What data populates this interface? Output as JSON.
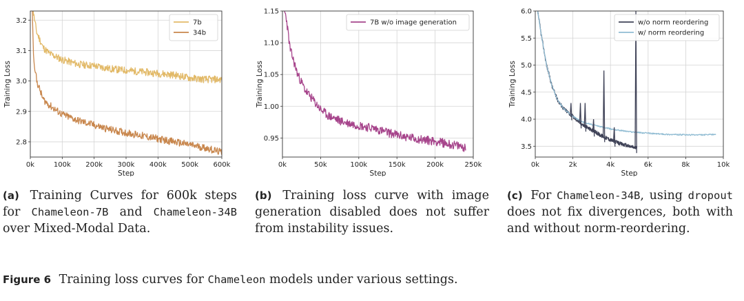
{
  "chart_data": [
    {
      "type": "line",
      "xlabel": "Step",
      "ylabel": "Training Loss",
      "xlim": [
        0,
        600000
      ],
      "ylim": [
        2.75,
        3.23
      ],
      "xticks": [
        0,
        100000,
        200000,
        300000,
        400000,
        500000,
        600000
      ],
      "xtick_labels": [
        "0k",
        "100k",
        "200k",
        "300k",
        "400k",
        "500k",
        "600k"
      ],
      "yticks": [
        2.8,
        2.9,
        3.0,
        3.1,
        3.2
      ],
      "ytick_labels": [
        "2.8",
        "2.9",
        "3.0",
        "3.1",
        "3.2"
      ],
      "grid": true,
      "legend": "top-right",
      "series": [
        {
          "name": "7b",
          "color": "#e2b967",
          "x": [
            0,
            10000,
            20000,
            40000,
            60000,
            100000,
            150000,
            200000,
            250000,
            300000,
            350000,
            400000,
            450000,
            500000,
            550000,
            600000
          ],
          "y": [
            3.5,
            3.22,
            3.16,
            3.11,
            3.09,
            3.07,
            3.055,
            3.05,
            3.04,
            3.035,
            3.03,
            3.025,
            3.02,
            3.01,
            3.005,
            3.005
          ]
        },
        {
          "name": "34b",
          "color": "#c8864c",
          "x": [
            0,
            10000,
            20000,
            40000,
            60000,
            100000,
            150000,
            200000,
            250000,
            300000,
            350000,
            400000,
            450000,
            500000,
            550000,
            600000
          ],
          "y": [
            3.5,
            3.08,
            3.0,
            2.94,
            2.92,
            2.89,
            2.87,
            2.855,
            2.84,
            2.83,
            2.82,
            2.81,
            2.8,
            2.79,
            2.78,
            2.765
          ]
        }
      ]
    },
    {
      "type": "line",
      "xlabel": "Step",
      "ylabel": "Training Loss",
      "xlim": [
        0,
        250000
      ],
      "ylim": [
        0.92,
        1.15
      ],
      "xticks": [
        0,
        50000,
        100000,
        150000,
        200000,
        250000
      ],
      "xtick_labels": [
        "0k",
        "50k",
        "100k",
        "150k",
        "200k",
        "250k"
      ],
      "yticks": [
        0.95,
        1.0,
        1.05,
        1.1,
        1.15
      ],
      "ytick_labels": [
        "0.95",
        "1.00",
        "1.05",
        "1.10",
        "1.15"
      ],
      "grid": true,
      "legend": "top-right",
      "series": [
        {
          "name": "7B w/o image generation",
          "color": "#a6448b",
          "x": [
            0,
            5000,
            10000,
            20000,
            30000,
            40000,
            50000,
            60000,
            80000,
            100000,
            120000,
            140000,
            160000,
            180000,
            200000,
            220000,
            240000
          ],
          "y": [
            1.16,
            1.14,
            1.09,
            1.05,
            1.025,
            1.01,
            0.995,
            0.985,
            0.975,
            0.97,
            0.965,
            0.958,
            0.952,
            0.948,
            0.945,
            0.94,
            0.935
          ]
        }
      ]
    },
    {
      "type": "line",
      "xlabel": "Step",
      "ylabel": "Training Loss",
      "xlim": [
        0,
        10000
      ],
      "ylim": [
        3.3,
        6.0
      ],
      "xticks": [
        0,
        2000,
        4000,
        6000,
        8000,
        10000
      ],
      "xtick_labels": [
        "0k",
        "2k",
        "4k",
        "6k",
        "8k",
        "10k"
      ],
      "yticks": [
        3.5,
        4.0,
        4.5,
        5.0,
        5.5,
        6.0
      ],
      "ytick_labels": [
        "3.5",
        "4.0",
        "4.5",
        "5.0",
        "5.5",
        "6.0"
      ],
      "grid": true,
      "legend": "top-right",
      "series": [
        {
          "name": "w/o norm reordering",
          "color": "#3f4257",
          "x": [
            0,
            300,
            600,
            900,
            1200,
            1500,
            2000,
            2500,
            3000,
            3500,
            4000,
            4500,
            5000,
            5400
          ],
          "y": [
            6.3,
            5.6,
            5.0,
            4.6,
            4.35,
            4.2,
            4.05,
            3.9,
            3.8,
            3.7,
            3.62,
            3.55,
            3.5,
            3.47
          ]
        },
        {
          "name": "w/ norm reordering",
          "color": "#8fbbd2",
          "x": [
            0,
            300,
            600,
            900,
            1200,
            1500,
            2000,
            2500,
            3000,
            4000,
            5000,
            6000,
            7000,
            8000,
            9000,
            9600
          ],
          "y": [
            6.3,
            5.6,
            5.0,
            4.6,
            4.35,
            4.2,
            4.05,
            3.95,
            3.9,
            3.82,
            3.77,
            3.74,
            3.72,
            3.71,
            3.71,
            3.72
          ]
        }
      ],
      "spikes": [
        {
          "series": "w/o norm reordering",
          "x": 1900,
          "y": 4.3
        },
        {
          "series": "w/o norm reordering",
          "x": 2400,
          "y": 4.3
        },
        {
          "series": "w/o norm reordering",
          "x": 2650,
          "y": 4.3
        },
        {
          "series": "w/o norm reordering",
          "x": 3100,
          "y": 4.0
        },
        {
          "series": "w/o norm reordering",
          "x": 3650,
          "y": 4.9
        },
        {
          "series": "w/o norm reordering",
          "x": 4200,
          "y": 3.85
        },
        {
          "series": "w/o norm reordering",
          "x": 5350,
          "y": 6.0
        }
      ]
    }
  ],
  "captions": {
    "a": {
      "label": "(a)",
      "pre": "Training Curves for 600k steps for",
      "m1": "Chameleon-7B",
      "mid": "and",
      "m2": "Chameleon-34B",
      "post": "over Mixed-Modal Data."
    },
    "b": {
      "label": "(b)",
      "text": "Training loss curve with image generation disabled does not suffer from instability issues."
    },
    "c": {
      "label": "(c)",
      "pre": "For",
      "m1": "Chameleon-34B",
      "mid": ", using",
      "m2": "dropout",
      "post": "does not fix divergences, both with and without norm-reordering."
    }
  },
  "figure_caption": {
    "label": "Figure 6",
    "pre": "Training loss curves for",
    "mono": "Chameleon",
    "post": "models under various settings."
  }
}
